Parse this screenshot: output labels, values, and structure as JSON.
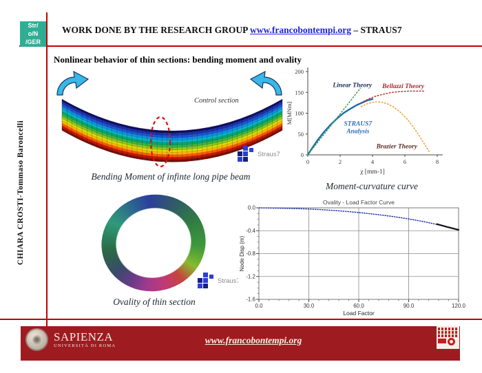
{
  "header": {
    "logo_lines": [
      "Str/",
      "o/N",
      "/GER"
    ],
    "title_prefix": "WORK DONE BY THE RESEARCH GROUP ",
    "title_link": "www.francobontempi.org",
    "title_suffix": " – STRAUS7"
  },
  "sidebar": {
    "author": "CHIARA CROSTI-Tommaso Baroncelli"
  },
  "subtitle": "Nonlinear behavior of thin sections: bending moment and ovality",
  "beam_figure": {
    "control_section_label": "Control section",
    "caption": "Bending Moment of infinte long pipe beam",
    "mesh_lines": 44,
    "strip_colors": [
      "#0d1060",
      "#1b2fb4",
      "#1a58d0",
      "#0f8fe0",
      "#00b8c8",
      "#00a868",
      "#3cb43c",
      "#8cc81e",
      "#e0dc00",
      "#ffb400",
      "#ff5a00",
      "#c81400",
      "#7a0e08"
    ]
  },
  "straus7_logo": {
    "label": "Straus7"
  },
  "ovality_figure": {
    "caption": "Ovality of thin section",
    "ring_colors": [
      "#2b3f9e 0%",
      "#31566e 8%",
      "#2f7a44 18%",
      "#3f9a3a 28%",
      "#86bb2e 35%",
      "#c5453c 41%",
      "#c13a74 47%",
      "#a03a8c 54%",
      "#6a3a8a 60%",
      "#3a4a6a 66%",
      "#2a6a44 74%",
      "#2f9a7a 84%",
      "#2b3f9e 100%"
    ]
  },
  "footer": {
    "university": "SAPIENZA",
    "university_sub": "Università di Roma",
    "link": "www.francobontempi.org"
  },
  "colors": {
    "accent_red": "#c00000",
    "footer_bar": "#9e1b20",
    "logo_teal": "#2fae94",
    "header_link_blue": "#2121dd",
    "arrow_cyan": "#38b8e8"
  },
  "chart_data": [
    {
      "type": "line",
      "caption": "Moment-curvature curve",
      "xlabel": "χ [mm-1]",
      "ylabel": "M[MNm]",
      "xlim": [
        0,
        8
      ],
      "ylim": [
        0,
        200
      ],
      "xticks": [
        0,
        2,
        4,
        6,
        8
      ],
      "xtick_labels": [
        "0",
        "2",
        "4",
        "6",
        "8"
      ],
      "yticks": [
        0,
        50,
        100,
        150,
        200
      ],
      "ytick_labels": [
        "0",
        "50",
        "100",
        "150",
        "200"
      ],
      "grid": false,
      "legend_position": "inline-annotations",
      "series": [
        {
          "name": "STRAUS7 Analysis",
          "style": "solid",
          "color": "#1e6ab0",
          "width": 2.4,
          "points": [
            [
              0,
              0
            ],
            [
              0.3,
              18
            ],
            [
              0.6,
              35
            ],
            [
              1,
              55
            ],
            [
              1.4,
              72
            ],
            [
              1.8,
              87
            ],
            [
              2.2,
              100
            ],
            [
              2.6,
              110
            ],
            [
              3,
              119
            ],
            [
              3.4,
              126
            ],
            [
              3.7,
              131
            ],
            [
              4,
              134
            ]
          ]
        },
        {
          "name": "Linear Theory",
          "style": "dotted",
          "color": "#3aa14f",
          "width": 1.5,
          "points": [
            [
              0,
              0
            ],
            [
              3.25,
              160
            ]
          ]
        },
        {
          "name": "Bellazzi Theory",
          "style": "dotted",
          "color": "#c03028",
          "width": 1.5,
          "points": [
            [
              3.45,
              128
            ],
            [
              3.8,
              135
            ],
            [
              4.2,
              141
            ],
            [
              4.7,
              146
            ],
            [
              5.2,
              150
            ],
            [
              5.7,
              152
            ],
            [
              6.2,
              153
            ],
            [
              6.7,
              153
            ],
            [
              7.2,
              153
            ]
          ]
        },
        {
          "name": "Brazier Theory",
          "style": "dotted",
          "color": "#f0a030",
          "width": 1.5,
          "points": [
            [
              3.3,
              116
            ],
            [
              3.7,
              123
            ],
            [
              4.1,
              127
            ],
            [
              4.5,
              127
            ],
            [
              4.9,
              123
            ],
            [
              5.3,
              115
            ],
            [
              5.7,
              103
            ],
            [
              6.1,
              88
            ],
            [
              6.5,
              68
            ],
            [
              6.9,
              45
            ],
            [
              7.3,
              20
            ],
            [
              7.5,
              8
            ]
          ]
        }
      ],
      "annotations": [
        {
          "text": "Linear Theory",
          "x": 1.55,
          "y": 163,
          "color": "#1a2a5e",
          "anchor": "start",
          "size": 9.5
        },
        {
          "text": "Bellazzi Theory",
          "x": 4.6,
          "y": 160,
          "color": "#a02a28",
          "anchor": "start",
          "size": 9.5
        },
        {
          "text": "STRAUS7",
          "x": 3.1,
          "y": 70,
          "color": "#2a6ebb",
          "anchor": "middle",
          "size": 9.5
        },
        {
          "text": "Analysis",
          "x": 3.1,
          "y": 52,
          "color": "#2a6ebb",
          "anchor": "middle",
          "size": 9.5
        },
        {
          "text": "Brazier Theory",
          "x": 5.5,
          "y": 16,
          "color": "#5a2a20",
          "anchor": "middle",
          "size": 9.5
        }
      ]
    },
    {
      "type": "line",
      "title": "Ovality - Load Factor Curve",
      "xlabel": "Load Factor",
      "ylabel": "Node Disp (m)",
      "xlim": [
        0,
        120
      ],
      "ylim": [
        -1.6,
        0
      ],
      "xticks": [
        0,
        30,
        60,
        90,
        120
      ],
      "xtick_labels": [
        "0.0",
        "30.0",
        "60.0",
        "90.0",
        "120.0"
      ],
      "yticks": [
        0,
        -0.4,
        -0.8,
        -1.2,
        -1.6
      ],
      "ytick_labels": [
        "0.0",
        "-0.4",
        "-0.8",
        "-1.2",
        "-1.6"
      ],
      "grid": true,
      "x_minor_step": 6,
      "y_minor_step": 0.1,
      "series": [
        {
          "name": "Ovality",
          "style": "dotted",
          "color": "#2233aa",
          "width": 1.5,
          "points": [
            [
              0,
              0
            ],
            [
              5,
              -0.002
            ],
            [
              10,
              -0.005
            ],
            [
              15,
              -0.008
            ],
            [
              20,
              -0.012
            ],
            [
              25,
              -0.016
            ],
            [
              30,
              -0.021
            ],
            [
              35,
              -0.028
            ],
            [
              40,
              -0.036
            ],
            [
              45,
              -0.046
            ],
            [
              50,
              -0.057
            ],
            [
              55,
              -0.069
            ],
            [
              60,
              -0.082
            ],
            [
              65,
              -0.097
            ],
            [
              70,
              -0.113
            ],
            [
              75,
              -0.131
            ],
            [
              80,
              -0.15
            ],
            [
              85,
              -0.171
            ],
            [
              90,
              -0.194
            ],
            [
              95,
              -0.219
            ],
            [
              100,
              -0.247
            ],
            [
              105,
              -0.278
            ],
            [
              110,
              -0.312
            ],
            [
              115,
              -0.348
            ],
            [
              120,
              -0.385
            ]
          ]
        },
        {
          "name": "end-segment",
          "style": "solid",
          "color": "#111111",
          "width": 2.2,
          "points": [
            [
              107,
              -0.284
            ],
            [
              113,
              -0.333
            ],
            [
              120,
              -0.385
            ]
          ]
        }
      ]
    }
  ]
}
